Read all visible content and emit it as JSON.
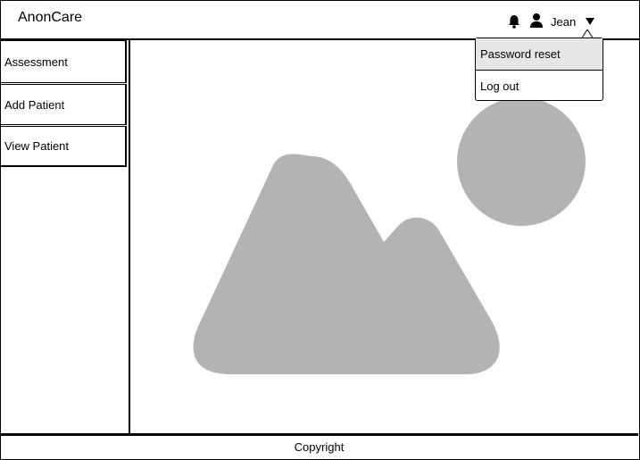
{
  "header": {
    "brand": "AnonCare",
    "username": "Jean",
    "icons": [
      "bell-icon",
      "user-icon",
      "caret-down-icon"
    ]
  },
  "sidebar": {
    "items": [
      {
        "label": "Assessment"
      },
      {
        "label": "Add Patient"
      },
      {
        "label": "View Patient"
      }
    ]
  },
  "dropdown": {
    "items": [
      {
        "label": "Password reset",
        "highlighted": true
      },
      {
        "label": "Log out",
        "highlighted": false
      }
    ]
  },
  "main": {
    "placeholder_icon": "image-placeholder-icon",
    "placeholder_color": "#b3b3b3"
  },
  "footer": {
    "text": "Copyright"
  }
}
